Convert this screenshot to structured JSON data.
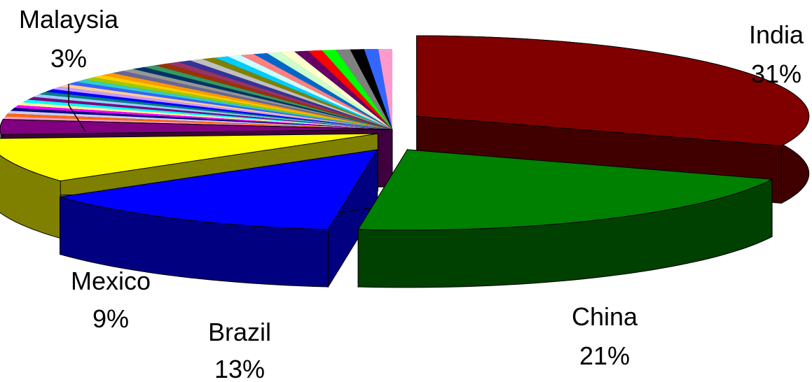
{
  "chart_data": {
    "type": "pie",
    "style": "3d-exploded",
    "slices": [
      {
        "label": "India",
        "value_text": "31%",
        "value": 31,
        "color": "#800000",
        "labeled": true
      },
      {
        "label": "China",
        "value_text": "21%",
        "value": 21,
        "color": "#008000",
        "labeled": true
      },
      {
        "label": "Brazil",
        "value_text": "13%",
        "value": 13,
        "color": "#0000FF",
        "labeled": true
      },
      {
        "label": "Mexico",
        "value_text": "9%",
        "value": 9,
        "color": "#FFFF00",
        "labeled": true
      },
      {
        "label": "Malaysia",
        "value_text": "3%",
        "value": 3,
        "color": "#800080",
        "labeled": true
      }
    ],
    "minor_slices_total": 23,
    "minor_slice_colors": [
      "#FF99CC",
      "#FF6600",
      "#CCCCFF",
      "#000080",
      "#FF00FF",
      "#FFFF99",
      "#00FFFF",
      "#800080",
      "#99CCFF",
      "#008080",
      "#0000FF",
      "#CC99FF",
      "#FFCC99",
      "#3366FF",
      "#33CCCC",
      "#99CC00",
      "#FFCC00",
      "#FF9900",
      "#666699",
      "#969696",
      "#003366",
      "#339966",
      "#993300",
      "#993366",
      "#333399",
      "#C0C0C0",
      "#808000",
      "#00CCFF",
      "#CCFFFF",
      "#FF8080",
      "#0066CC",
      "#CCFFCC",
      "#FFFFCC",
      "#660066",
      "#FF0000",
      "#00FF00",
      "#808080",
      "#000000",
      "#3366FF",
      "#FF99CC"
    ],
    "legend": "none"
  }
}
